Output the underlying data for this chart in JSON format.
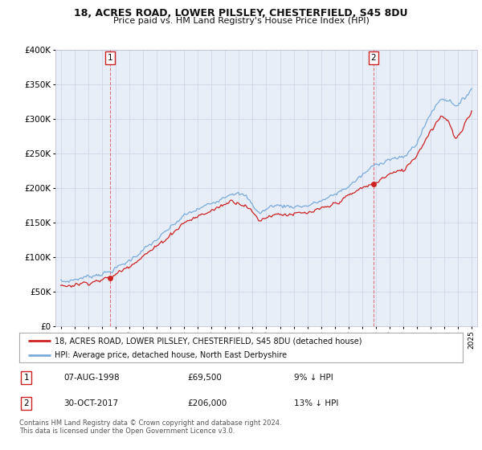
{
  "title": "18, ACRES ROAD, LOWER PILSLEY, CHESTERFIELD, S45 8DU",
  "subtitle": "Price paid vs. HM Land Registry's House Price Index (HPI)",
  "ylim": [
    0,
    400000
  ],
  "yticks": [
    0,
    50000,
    100000,
    150000,
    200000,
    250000,
    300000,
    350000,
    400000
  ],
  "ytick_labels": [
    "£0",
    "£50K",
    "£100K",
    "£150K",
    "£200K",
    "£250K",
    "£300K",
    "£350K",
    "£400K"
  ],
  "hpi_color": "#7aabdb",
  "price_color": "#cc2222",
  "sale1_date": "07-AUG-1998",
  "sale1_price": 69500,
  "sale1_note": "9% ↓ HPI",
  "sale2_date": "30-OCT-2017",
  "sale2_price": 206000,
  "sale2_note": "13% ↓ HPI",
  "sale1_x": 1998.59,
  "sale2_x": 2017.83,
  "legend_label1": "18, ACRES ROAD, LOWER PILSLEY, CHESTERFIELD, S45 8DU (detached house)",
  "legend_label2": "HPI: Average price, detached house, North East Derbyshire",
  "footnote": "Contains HM Land Registry data © Crown copyright and database right 2024.\nThis data is licensed under the Open Government Licence v3.0.",
  "background_color": "#ffffff",
  "grid_color": "#d0d8e8",
  "chart_bg": "#e8eef8"
}
